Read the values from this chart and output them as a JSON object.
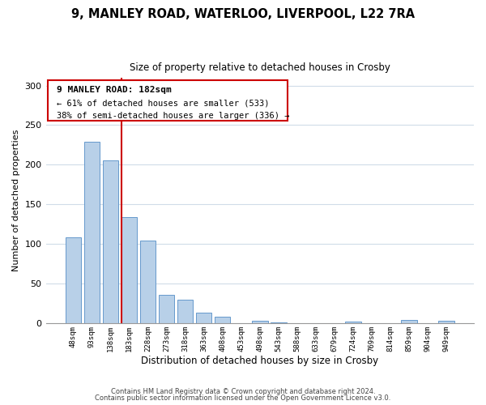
{
  "title": "9, MANLEY ROAD, WATERLOO, LIVERPOOL, L22 7RA",
  "subtitle": "Size of property relative to detached houses in Crosby",
  "xlabel": "Distribution of detached houses by size in Crosby",
  "ylabel": "Number of detached properties",
  "bar_labels": [
    "48sqm",
    "93sqm",
    "138sqm",
    "183sqm",
    "228sqm",
    "273sqm",
    "318sqm",
    "363sqm",
    "408sqm",
    "453sqm",
    "498sqm",
    "543sqm",
    "588sqm",
    "633sqm",
    "679sqm",
    "724sqm",
    "769sqm",
    "814sqm",
    "859sqm",
    "904sqm",
    "949sqm"
  ],
  "bar_values": [
    108,
    229,
    205,
    134,
    104,
    36,
    30,
    13,
    8,
    0,
    3,
    1,
    0,
    0,
    0,
    2,
    0,
    0,
    4,
    0,
    3
  ],
  "bar_color": "#b8d0e8",
  "bar_edge_color": "#6699cc",
  "highlight_bar_index": 3,
  "highlight_line_color": "#cc0000",
  "annotation_title": "9 MANLEY ROAD: 182sqm",
  "annotation_line1": "← 61% of detached houses are smaller (533)",
  "annotation_line2": "38% of semi-detached houses are larger (336) →",
  "annotation_box_color": "#ffffff",
  "annotation_box_edge_color": "#cc0000",
  "ylim": [
    0,
    310
  ],
  "yticks": [
    0,
    50,
    100,
    150,
    200,
    250,
    300
  ],
  "footer_line1": "Contains HM Land Registry data © Crown copyright and database right 2024.",
  "footer_line2": "Contains public sector information licensed under the Open Government Licence v3.0.",
  "bg_color": "#ffffff",
  "grid_color": "#d0dce8"
}
